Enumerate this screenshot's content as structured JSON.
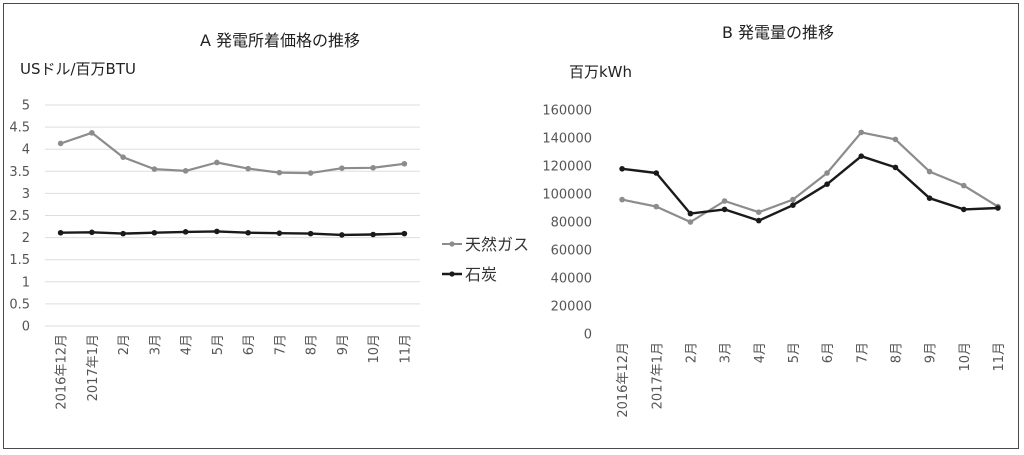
{
  "legend": {
    "gas": "天然ガス",
    "coal": "石炭"
  },
  "colors": {
    "gas": "#8c8c8c",
    "coal": "#1a1a1a",
    "grid": "#dddddd"
  },
  "chart_data": [
    {
      "type": "line",
      "title": "A  発電所着価格の推移",
      "ylabel": "USドル/百万BTU",
      "xlabel": "",
      "categories": [
        "2016年12月",
        "2017年1月",
        "2月",
        "3月",
        "4月",
        "5月",
        "6月",
        "7月",
        "8月",
        "9月",
        "10月",
        "11月"
      ],
      "ylim": [
        0,
        5
      ],
      "yticks": [
        "0",
        "0.5",
        "1",
        "1.5",
        "2",
        "2.5",
        "3",
        "3.5",
        "4",
        "4.5",
        "5"
      ],
      "grid": true,
      "series": [
        {
          "key": "gas",
          "name": "天然ガス",
          "values": [
            4.13,
            4.37,
            3.82,
            3.55,
            3.51,
            3.7,
            3.56,
            3.47,
            3.46,
            3.57,
            3.58,
            3.67
          ]
        },
        {
          "key": "coal",
          "name": "石炭",
          "values": [
            2.11,
            2.12,
            2.09,
            2.11,
            2.13,
            2.14,
            2.11,
            2.1,
            2.09,
            2.06,
            2.07,
            2.09
          ]
        }
      ]
    },
    {
      "type": "line",
      "title": "B  発電量の推移",
      "ylabel": "百万kWh",
      "xlabel": "",
      "categories": [
        "2016年12月",
        "2017年1月",
        "2月",
        "3月",
        "4月",
        "5月",
        "6月",
        "7月",
        "8月",
        "9月",
        "10月",
        "11月"
      ],
      "ylim": [
        0,
        160000
      ],
      "yticks": [
        "0",
        "20000",
        "40000",
        "60000",
        "80000",
        "100000",
        "120000",
        "140000",
        "160000"
      ],
      "grid": false,
      "series": [
        {
          "key": "gas",
          "name": "天然ガス",
          "values": [
            96000,
            91000,
            80000,
            95000,
            87000,
            96000,
            115000,
            144000,
            139000,
            116000,
            106000,
            91000
          ]
        },
        {
          "key": "coal",
          "name": "石炭",
          "values": [
            118000,
            115000,
            86000,
            89000,
            81000,
            92000,
            107000,
            127000,
            119000,
            97000,
            89000,
            90000
          ]
        }
      ]
    }
  ]
}
